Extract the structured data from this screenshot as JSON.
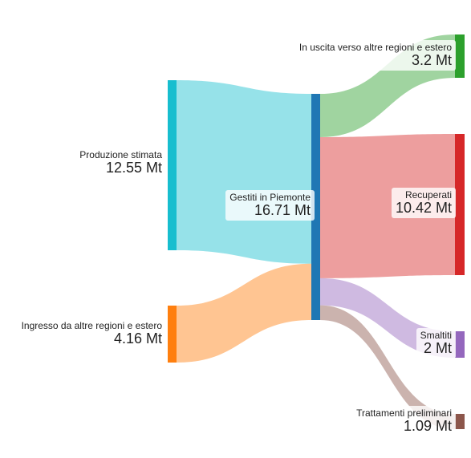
{
  "chart_data": {
    "type": "sankey",
    "unit": "Mt",
    "nodes": [
      {
        "id": "prod",
        "name": "Produzione stimata",
        "value": "12.55 Mt",
        "color": "#17becf"
      },
      {
        "id": "ingr",
        "name": "Ingresso da altre regioni e estero",
        "value": "4.16 Mt",
        "color": "#ff7f0e"
      },
      {
        "id": "gest",
        "name": "Gestiti in Piemonte",
        "value": "16.71 Mt",
        "color": "#1f77b4"
      },
      {
        "id": "usc",
        "name": "In uscita verso altre regioni e estero",
        "value": "3.2 Mt",
        "color": "#2ca02c"
      },
      {
        "id": "rec",
        "name": "Recuperati",
        "value": "10.42 Mt",
        "color": "#d62728"
      },
      {
        "id": "sma",
        "name": "Smaltiti",
        "value": "2 Mt",
        "color": "#9467bd"
      },
      {
        "id": "tra",
        "name": "Trattamenti preliminari",
        "value": "1.09 Mt",
        "color": "#8c564b"
      }
    ],
    "links": [
      {
        "source": "prod",
        "target": "gest",
        "value": 12.55
      },
      {
        "source": "ingr",
        "target": "gest",
        "value": 4.16
      },
      {
        "source": "gest",
        "target": "usc",
        "value": 3.2
      },
      {
        "source": "gest",
        "target": "rec",
        "value": 10.42
      },
      {
        "source": "gest",
        "target": "sma",
        "value": 2.0
      },
      {
        "source": "gest",
        "target": "tra",
        "value": 1.09
      }
    ]
  }
}
